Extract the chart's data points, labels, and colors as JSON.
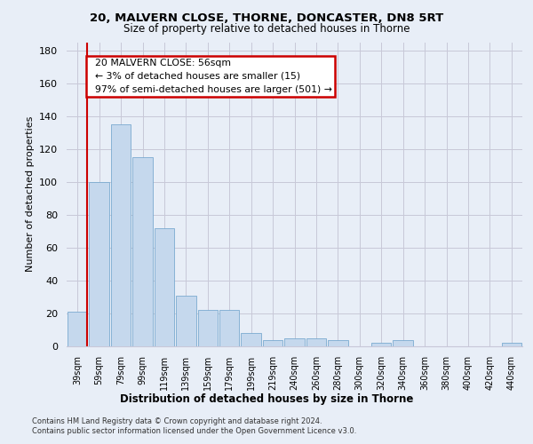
{
  "title1": "20, MALVERN CLOSE, THORNE, DONCASTER, DN8 5RT",
  "title2": "Size of property relative to detached houses in Thorne",
  "xlabel": "Distribution of detached houses by size in Thorne",
  "ylabel": "Number of detached properties",
  "bar_color": "#c5d8ed",
  "bar_edge_color": "#7aaad0",
  "categories": [
    "39sqm",
    "59sqm",
    "79sqm",
    "99sqm",
    "119sqm",
    "139sqm",
    "159sqm",
    "179sqm",
    "199sqm",
    "219sqm",
    "240sqm",
    "260sqm",
    "280sqm",
    "300sqm",
    "320sqm",
    "340sqm",
    "360sqm",
    "380sqm",
    "400sqm",
    "420sqm",
    "440sqm"
  ],
  "values": [
    21,
    100,
    135,
    115,
    72,
    31,
    22,
    22,
    8,
    4,
    5,
    5,
    4,
    0,
    2,
    4,
    0,
    0,
    0,
    0,
    2
  ],
  "ylim": [
    0,
    185
  ],
  "yticks": [
    0,
    20,
    40,
    60,
    80,
    100,
    120,
    140,
    160,
    180
  ],
  "annotation_text": "  20 MALVERN CLOSE: 56sqm\n  ← 3% of detached houses are smaller (15)\n  97% of semi-detached houses are larger (501) →",
  "annotation_box_color": "#ffffff",
  "annotation_box_edge": "#cc0000",
  "property_line_color": "#cc0000",
  "footer1": "Contains HM Land Registry data © Crown copyright and database right 2024.",
  "footer2": "Contains public sector information licensed under the Open Government Licence v3.0.",
  "bg_color": "#e8eef7",
  "plot_bg_color": "#e8eef7",
  "grid_color": "#c8c8d8"
}
